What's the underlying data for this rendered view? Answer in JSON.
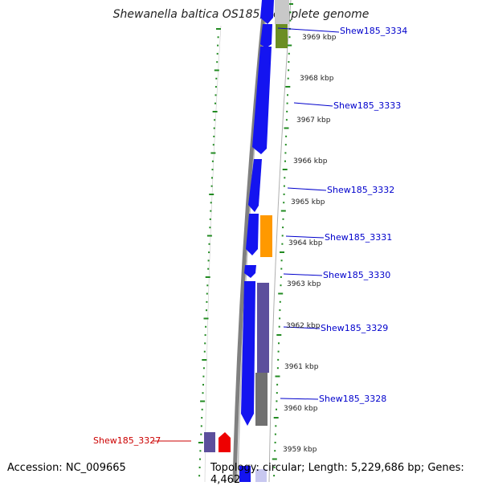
{
  "title": "Shewanella baltica OS185, complete genome",
  "accession_label": "Accession:",
  "accession": "NC_009665",
  "topology_label": "Topology:",
  "topology": "circular",
  "length_label": "Length:",
  "length": "5,229,686 bp",
  "genes_label": "Genes:",
  "genes": "4,462",
  "colors": {
    "cds_blue": "#1414f0",
    "cds_purple": "#5c4f9c",
    "cds_gray": "#707070",
    "cds_orange": "#ff9900",
    "cds_olive": "#6b8e23",
    "cds_red": "#ee0000",
    "label_blue": "#0000cc",
    "label_red": "#cc0000",
    "tick_green": "#228b22",
    "backbone": "#808080"
  },
  "scale_labels": [
    "3969 kbp",
    "3968 kbp",
    "3967 kbp",
    "3966 kbp",
    "3965 kbp",
    "3964 kbp",
    "3963 kbp",
    "3962 kbp",
    "3961 kbp",
    "3960 kbp",
    "3959 kbp"
  ],
  "gene_labels": [
    {
      "text": "Shew185_3334",
      "color": "label_blue"
    },
    {
      "text": "Shew185_3333",
      "color": "label_blue"
    },
    {
      "text": "Shew185_3332",
      "color": "label_blue"
    },
    {
      "text": "Shew185_3331",
      "color": "label_blue"
    },
    {
      "text": "Shew185_3330",
      "color": "label_blue"
    },
    {
      "text": "Shew185_3329",
      "color": "label_blue"
    },
    {
      "text": "Shew185_3328",
      "color": "label_blue"
    },
    {
      "text": "Shew185_3327",
      "color": "label_red"
    }
  ]
}
